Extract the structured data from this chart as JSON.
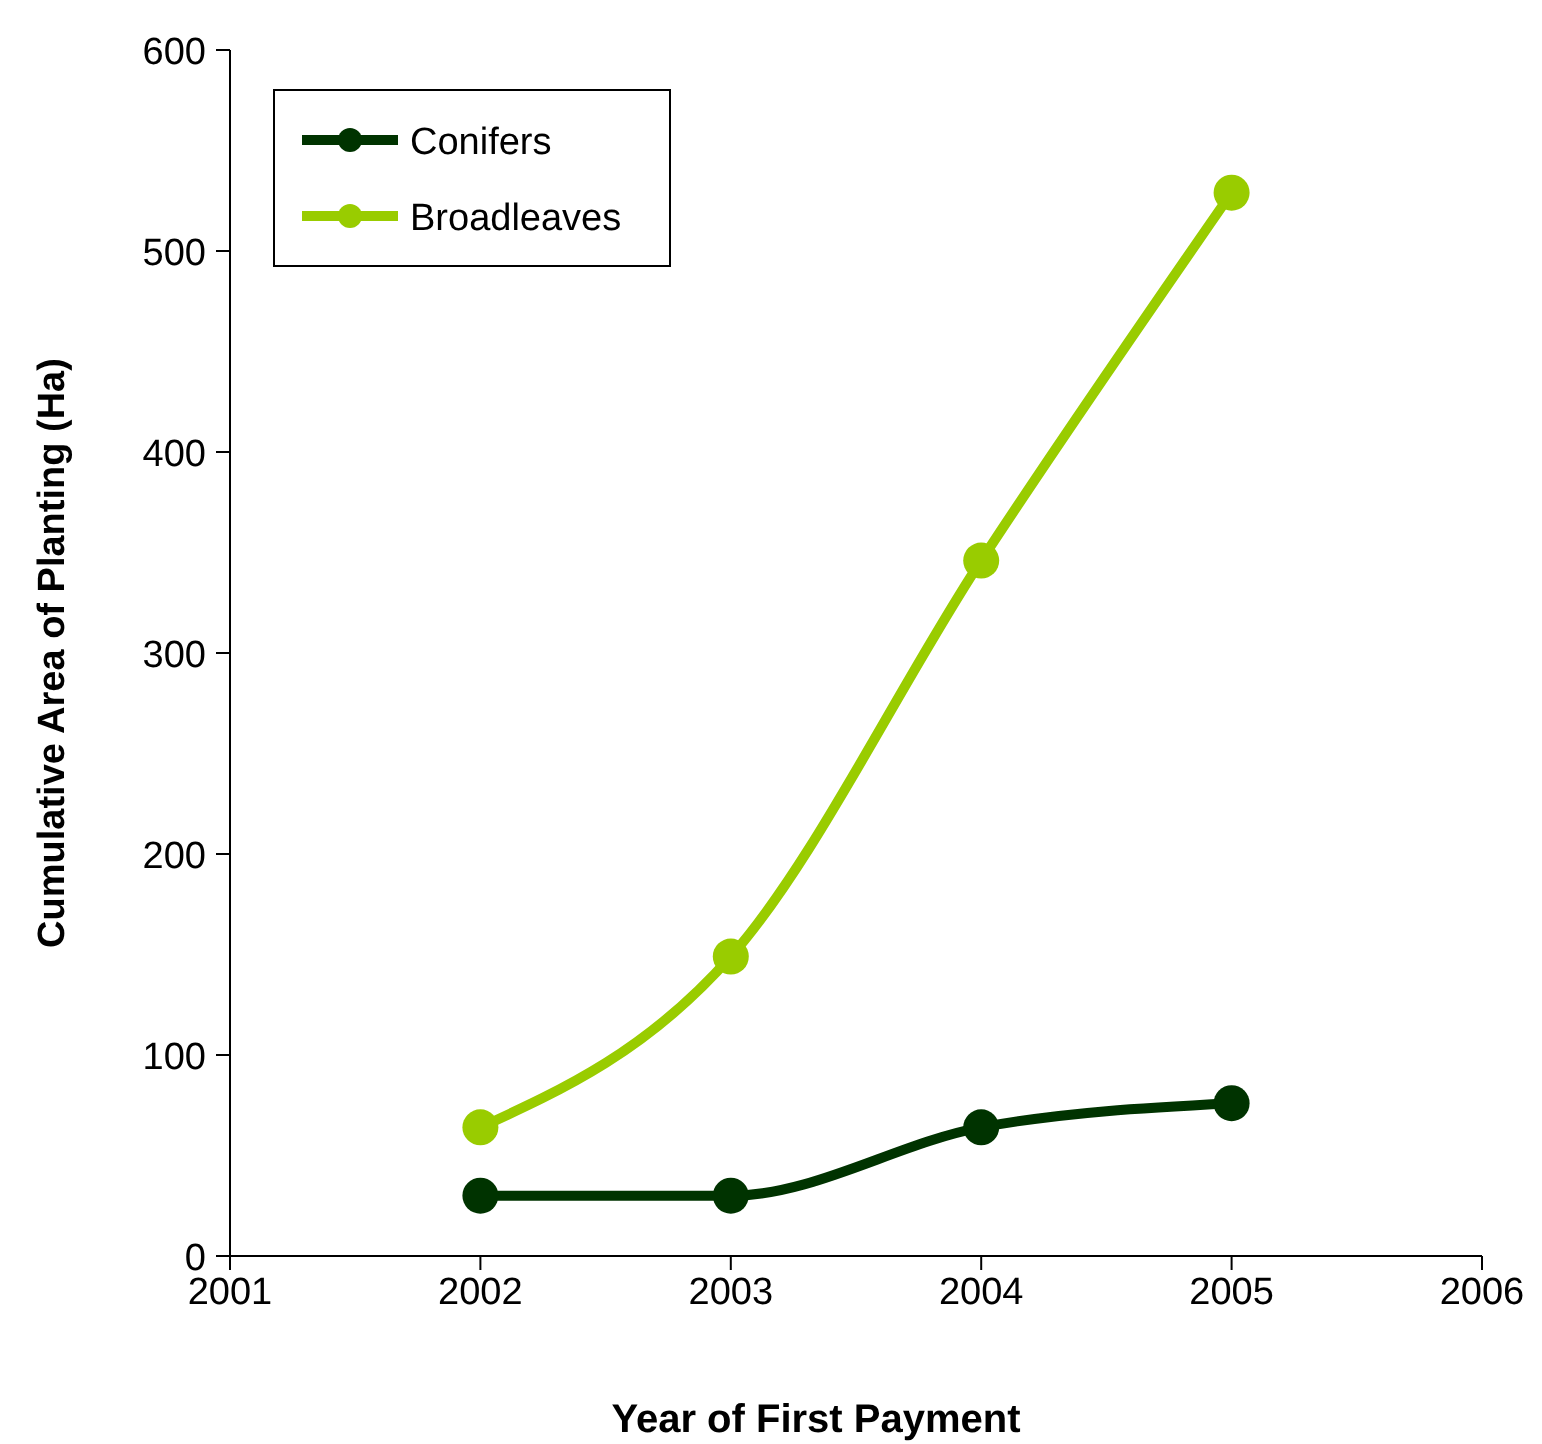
{
  "chart_data": {
    "type": "line",
    "xlabel": "Year of First Payment",
    "ylabel": "Cumulative Area of Planting (Ha)",
    "x": [
      2002,
      2003,
      2004,
      2005
    ],
    "series": [
      {
        "name": "Conifers",
        "color": "#003300",
        "values": [
          30,
          30,
          64,
          76
        ]
      },
      {
        "name": "Broadleaves",
        "color": "#99cc00",
        "values": [
          64,
          149,
          346,
          529
        ]
      }
    ],
    "xlim": [
      2001,
      2006
    ],
    "xticks": [
      2001,
      2002,
      2003,
      2004,
      2005,
      2006
    ],
    "ylim": [
      0,
      600
    ],
    "yticks": [
      0,
      100,
      200,
      300,
      400,
      500,
      600
    ],
    "grid": false,
    "legend": "top left",
    "marker": "circle",
    "line_style": "solid"
  }
}
